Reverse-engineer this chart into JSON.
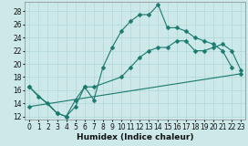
{
  "xlabel": "Humidex (Indice chaleur)",
  "background_color": "#cce8e8",
  "line_color": "#1a7a6e",
  "xlim": [
    -0.5,
    23.5
  ],
  "ylim": [
    11.5,
    29.5
  ],
  "xticks": [
    0,
    1,
    2,
    3,
    4,
    5,
    6,
    7,
    8,
    9,
    10,
    11,
    12,
    13,
    14,
    15,
    16,
    17,
    18,
    19,
    20,
    21,
    22,
    23
  ],
  "yticks": [
    12,
    14,
    16,
    18,
    20,
    22,
    24,
    26,
    28
  ],
  "line1_x": [
    0,
    1,
    2,
    3,
    4,
    5,
    6,
    7,
    8,
    9,
    10,
    11,
    12,
    13,
    14,
    15,
    16,
    17,
    18,
    19,
    20,
    21,
    22
  ],
  "line1_y": [
    16.5,
    15.0,
    14.0,
    12.5,
    12.0,
    13.5,
    16.5,
    14.5,
    19.5,
    22.5,
    25.0,
    26.5,
    27.5,
    27.5,
    29.0,
    25.5,
    25.5,
    25.0,
    24.0,
    23.5,
    23.0,
    22.0,
    19.5
  ],
  "line2_x": [
    0,
    3,
    4,
    5,
    6,
    7,
    10,
    11,
    12,
    13,
    14,
    15,
    16,
    17,
    18,
    19,
    20,
    21,
    22,
    23
  ],
  "line2_y": [
    16.5,
    12.5,
    12.0,
    14.5,
    16.5,
    16.5,
    18.0,
    19.5,
    21.0,
    22.0,
    22.5,
    22.5,
    23.5,
    23.5,
    22.0,
    22.0,
    22.5,
    23.0,
    22.0,
    19.0
  ],
  "line3_x": [
    0,
    23
  ],
  "line3_y": [
    13.5,
    18.5
  ],
  "grid_color": "#aad4d4",
  "marker": "D",
  "markersize": 2.5,
  "linewidth": 0.8,
  "tick_fontsize": 5.5,
  "xlabel_fontsize": 6.5
}
